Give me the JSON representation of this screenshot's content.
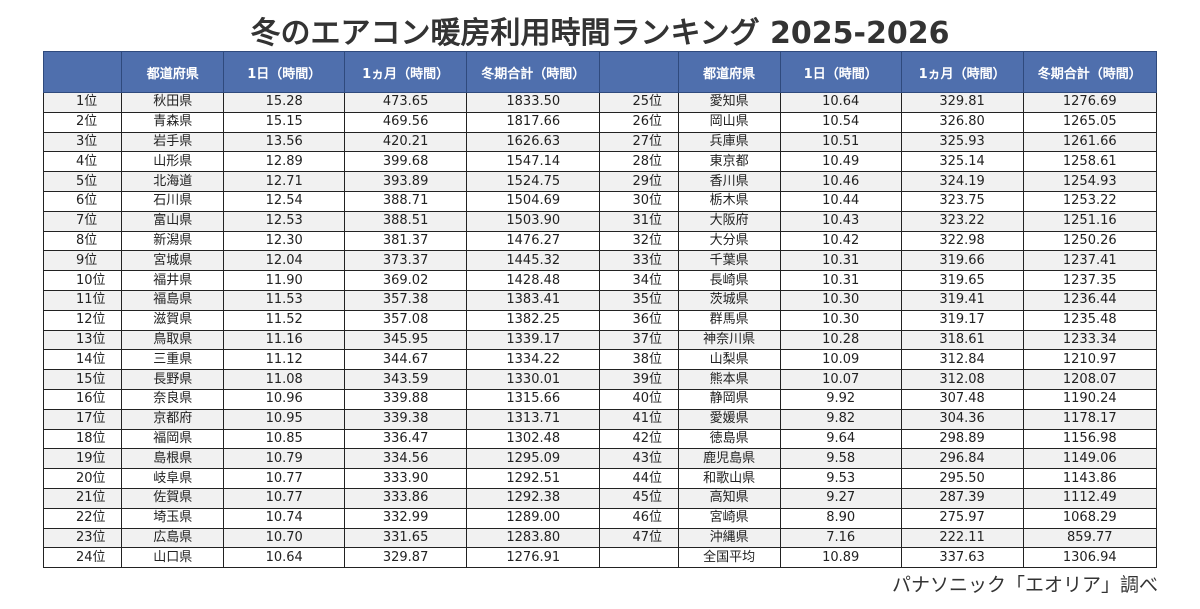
{
  "title": "冬のエアコン暖房利用時間ランキング 2025-2026",
  "headers": {
    "rank": "",
    "pref": "都道府県",
    "day": "1日（時間）",
    "month": "1ヵ月（時間）",
    "season": "冬期合計（時間）"
  },
  "left_rows": [
    {
      "rank": "1位",
      "pref": "秋田県",
      "day": "15.28",
      "month": "473.65",
      "season": "1833.50"
    },
    {
      "rank": "2位",
      "pref": "青森県",
      "day": "15.15",
      "month": "469.56",
      "season": "1817.66"
    },
    {
      "rank": "3位",
      "pref": "岩手県",
      "day": "13.56",
      "month": "420.21",
      "season": "1626.63"
    },
    {
      "rank": "4位",
      "pref": "山形県",
      "day": "12.89",
      "month": "399.68",
      "season": "1547.14"
    },
    {
      "rank": "5位",
      "pref": "北海道",
      "day": "12.71",
      "month": "393.89",
      "season": "1524.75"
    },
    {
      "rank": "6位",
      "pref": "石川県",
      "day": "12.54",
      "month": "388.71",
      "season": "1504.69"
    },
    {
      "rank": "7位",
      "pref": "富山県",
      "day": "12.53",
      "month": "388.51",
      "season": "1503.90"
    },
    {
      "rank": "8位",
      "pref": "新潟県",
      "day": "12.30",
      "month": "381.37",
      "season": "1476.27"
    },
    {
      "rank": "9位",
      "pref": "宮城県",
      "day": "12.04",
      "month": "373.37",
      "season": "1445.32"
    },
    {
      "rank": "10位",
      "pref": "福井県",
      "day": "11.90",
      "month": "369.02",
      "season": "1428.48"
    },
    {
      "rank": "11位",
      "pref": "福島県",
      "day": "11.53",
      "month": "357.38",
      "season": "1383.41"
    },
    {
      "rank": "12位",
      "pref": "滋賀県",
      "day": "11.52",
      "month": "357.08",
      "season": "1382.25"
    },
    {
      "rank": "13位",
      "pref": "鳥取県",
      "day": "11.16",
      "month": "345.95",
      "season": "1339.17"
    },
    {
      "rank": "14位",
      "pref": "三重県",
      "day": "11.12",
      "month": "344.67",
      "season": "1334.22"
    },
    {
      "rank": "15位",
      "pref": "長野県",
      "day": "11.08",
      "month": "343.59",
      "season": "1330.01"
    },
    {
      "rank": "16位",
      "pref": "奈良県",
      "day": "10.96",
      "month": "339.88",
      "season": "1315.66"
    },
    {
      "rank": "17位",
      "pref": "京都府",
      "day": "10.95",
      "month": "339.38",
      "season": "1313.71"
    },
    {
      "rank": "18位",
      "pref": "福岡県",
      "day": "10.85",
      "month": "336.47",
      "season": "1302.48"
    },
    {
      "rank": "19位",
      "pref": "島根県",
      "day": "10.79",
      "month": "334.56",
      "season": "1295.09"
    },
    {
      "rank": "20位",
      "pref": "岐阜県",
      "day": "10.77",
      "month": "333.90",
      "season": "1292.51"
    },
    {
      "rank": "21位",
      "pref": "佐賀県",
      "day": "10.77",
      "month": "333.86",
      "season": "1292.38"
    },
    {
      "rank": "22位",
      "pref": "埼玉県",
      "day": "10.74",
      "month": "332.99",
      "season": "1289.00"
    },
    {
      "rank": "23位",
      "pref": "広島県",
      "day": "10.70",
      "month": "331.65",
      "season": "1283.80"
    },
    {
      "rank": "24位",
      "pref": "山口県",
      "day": "10.64",
      "month": "329.87",
      "season": "1276.91"
    }
  ],
  "right_rows": [
    {
      "rank": "25位",
      "pref": "愛知県",
      "day": "10.64",
      "month": "329.81",
      "season": "1276.69"
    },
    {
      "rank": "26位",
      "pref": "岡山県",
      "day": "10.54",
      "month": "326.80",
      "season": "1265.05"
    },
    {
      "rank": "27位",
      "pref": "兵庫県",
      "day": "10.51",
      "month": "325.93",
      "season": "1261.66"
    },
    {
      "rank": "28位",
      "pref": "東京都",
      "day": "10.49",
      "month": "325.14",
      "season": "1258.61"
    },
    {
      "rank": "29位",
      "pref": "香川県",
      "day": "10.46",
      "month": "324.19",
      "season": "1254.93"
    },
    {
      "rank": "30位",
      "pref": "栃木県",
      "day": "10.44",
      "month": "323.75",
      "season": "1253.22"
    },
    {
      "rank": "31位",
      "pref": "大阪府",
      "day": "10.43",
      "month": "323.22",
      "season": "1251.16"
    },
    {
      "rank": "32位",
      "pref": "大分県",
      "day": "10.42",
      "month": "322.98",
      "season": "1250.26"
    },
    {
      "rank": "33位",
      "pref": "千葉県",
      "day": "10.31",
      "month": "319.66",
      "season": "1237.41"
    },
    {
      "rank": "34位",
      "pref": "長崎県",
      "day": "10.31",
      "month": "319.65",
      "season": "1237.35"
    },
    {
      "rank": "35位",
      "pref": "茨城県",
      "day": "10.30",
      "month": "319.41",
      "season": "1236.44"
    },
    {
      "rank": "36位",
      "pref": "群馬県",
      "day": "10.30",
      "month": "319.17",
      "season": "1235.48"
    },
    {
      "rank": "37位",
      "pref": "神奈川県",
      "day": "10.28",
      "month": "318.61",
      "season": "1233.34"
    },
    {
      "rank": "38位",
      "pref": "山梨県",
      "day": "10.09",
      "month": "312.84",
      "season": "1210.97"
    },
    {
      "rank": "39位",
      "pref": "熊本県",
      "day": "10.07",
      "month": "312.08",
      "season": "1208.07"
    },
    {
      "rank": "40位",
      "pref": "静岡県",
      "day": "9.92",
      "month": "307.48",
      "season": "1190.24"
    },
    {
      "rank": "41位",
      "pref": "愛媛県",
      "day": "9.82",
      "month": "304.36",
      "season": "1178.17"
    },
    {
      "rank": "42位",
      "pref": "徳島県",
      "day": "9.64",
      "month": "298.89",
      "season": "1156.98"
    },
    {
      "rank": "43位",
      "pref": "鹿児島県",
      "day": "9.58",
      "month": "296.84",
      "season": "1149.06"
    },
    {
      "rank": "44位",
      "pref": "和歌山県",
      "day": "9.53",
      "month": "295.50",
      "season": "1143.86"
    },
    {
      "rank": "45位",
      "pref": "高知県",
      "day": "9.27",
      "month": "287.39",
      "season": "1112.49"
    },
    {
      "rank": "46位",
      "pref": "宮崎県",
      "day": "8.90",
      "month": "275.97",
      "season": "1068.29"
    },
    {
      "rank": "47位",
      "pref": "沖縄県",
      "day": "7.16",
      "month": "222.11",
      "season": "859.77"
    },
    {
      "rank": "",
      "pref": "全国平均",
      "day": "10.89",
      "month": "337.63",
      "season": "1306.94"
    }
  ],
  "credit": "パナソニック「エオリア」調べ",
  "colors": {
    "header_bg": "#4f6fad",
    "odd_row_bg": "#f1f1f1"
  }
}
